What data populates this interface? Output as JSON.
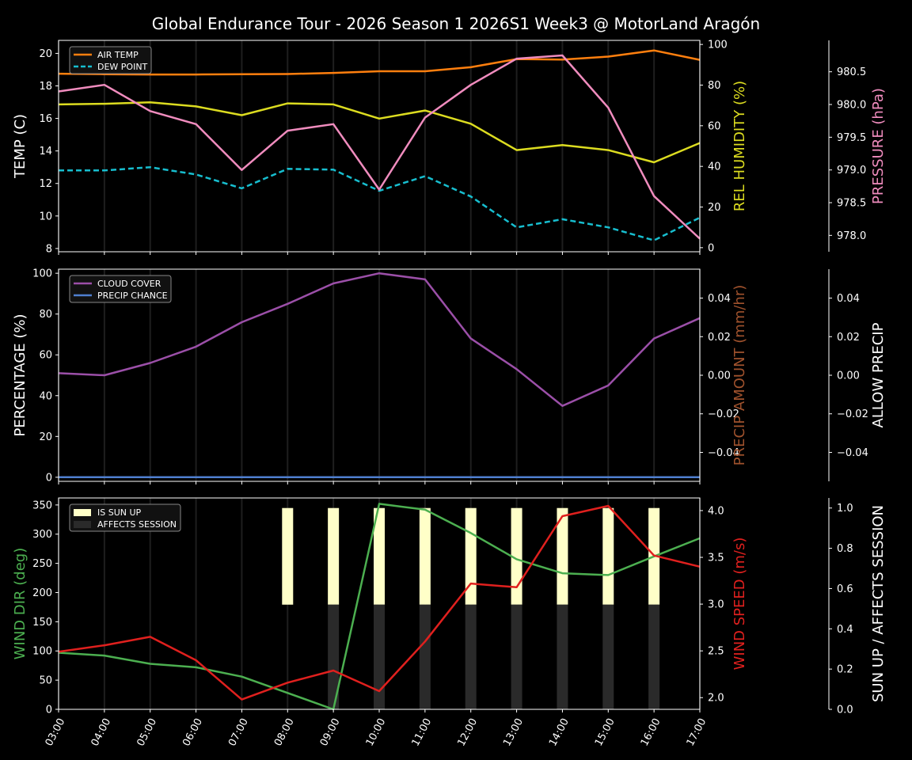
{
  "title": "Global Endurance Tour - 2026 Season 1 2026S1 Week3 @ MotorLand Aragón",
  "colors": {
    "background": "#000000",
    "axis": "#ffffff",
    "air_temp": "#ff7f0e",
    "dew_point": "#17becf",
    "humidity": "#dcdc20",
    "pressure": "#f08cbe",
    "cloud_cover": "#9b4fa8",
    "precip_chance": "#4f7fd0",
    "precip_amount_label": "#a0522d",
    "wind_dir": "#4caf50",
    "wind_speed": "#e0201e",
    "sun_up": "#ffffc8",
    "affects_session": "#2a2a2a"
  },
  "chart_data": [
    {
      "type": "line",
      "panel": "temperature",
      "x": [
        "03:00",
        "04:00",
        "05:00",
        "06:00",
        "07:00",
        "08:00",
        "09:00",
        "10:00",
        "11:00",
        "12:00",
        "13:00",
        "14:00",
        "15:00",
        "16:00",
        "17:00"
      ],
      "ylabel": "TEMP (C)",
      "ylim": [
        7.8,
        20.8
      ],
      "yticks": [
        "8",
        "10",
        "12",
        "14",
        "16",
        "18",
        "20"
      ],
      "y2label": "REL HUMIDITY (%)",
      "y2lim": [
        -2,
        102
      ],
      "y2ticks": [
        "0",
        "20",
        "40",
        "60",
        "80",
        "100"
      ],
      "y3label": "PRESSURE (hPa)",
      "y3lim": [
        977.75,
        980.98
      ],
      "y3ticks": [
        "978.0",
        "978.5",
        "979.0",
        "979.5",
        "980.0",
        "980.5"
      ],
      "legend": [
        "AIR TEMP",
        "DEW POINT"
      ],
      "series": [
        {
          "name": "AIR TEMP",
          "axis": "left",
          "values": [
            18.75,
            18.72,
            18.7,
            18.7,
            18.72,
            18.73,
            18.8,
            18.9,
            18.9,
            19.15,
            19.65,
            19.62,
            19.8,
            20.18,
            19.6
          ]
        },
        {
          "name": "DEW POINT",
          "axis": "left",
          "values": [
            12.8,
            12.8,
            13.0,
            12.55,
            11.7,
            12.9,
            12.85,
            11.55,
            12.45,
            11.2,
            9.3,
            9.8,
            9.3,
            8.5,
            9.9
          ]
        },
        {
          "axis": "right",
          "values": [
            70.5,
            70.8,
            71.5,
            69.5,
            65.2,
            71.0,
            70.5,
            63.5,
            67.5,
            61.0,
            48.0,
            50.5,
            48.0,
            42.0,
            51.5
          ]
        },
        {
          "axis": "far-right",
          "values": [
            980.2,
            980.3,
            979.9,
            979.7,
            979.0,
            979.6,
            979.7,
            978.7,
            979.8,
            980.3,
            980.7,
            980.75,
            979.95,
            978.6,
            977.95
          ]
        }
      ]
    },
    {
      "type": "line",
      "panel": "clouds",
      "x": [
        "03:00",
        "04:00",
        "05:00",
        "06:00",
        "07:00",
        "08:00",
        "09:00",
        "10:00",
        "11:00",
        "12:00",
        "13:00",
        "14:00",
        "15:00",
        "16:00",
        "17:00"
      ],
      "ylabel": "PERCENTAGE (%)",
      "ylim": [
        -2,
        102
      ],
      "yticks": [
        "0",
        "20",
        "40",
        "60",
        "80",
        "100"
      ],
      "y2label": "PRECIP AMOUNT (mm/hr)",
      "y2lim": [
        -0.055,
        0.055
      ],
      "y2ticks": [
        "−0.04",
        "−0.02",
        "0.00",
        "0.02",
        "0.04"
      ],
      "y3label": "ALLOW PRECIP",
      "y3lim": [
        -0.055,
        0.055
      ],
      "y3ticks": [
        "−0.04",
        "−0.02",
        "0.00",
        "0.02",
        "0.04"
      ],
      "legend": [
        "CLOUD COVER",
        "PRECIP CHANCE"
      ],
      "series": [
        {
          "name": "CLOUD COVER",
          "axis": "left",
          "values": [
            51,
            50,
            56,
            64,
            76,
            85,
            95,
            100,
            97,
            68,
            53,
            35,
            45,
            68,
            78
          ]
        },
        {
          "name": "PRECIP CHANCE",
          "axis": "left",
          "values": [
            0,
            0,
            0,
            0,
            0,
            0,
            0,
            0,
            0,
            0,
            0,
            0,
            0,
            0,
            0
          ]
        }
      ]
    },
    {
      "type": "line",
      "panel": "wind",
      "x": [
        "03:00",
        "04:00",
        "05:00",
        "06:00",
        "07:00",
        "08:00",
        "09:00",
        "10:00",
        "11:00",
        "12:00",
        "13:00",
        "14:00",
        "15:00",
        "16:00",
        "17:00"
      ],
      "ylabel": "WIND DIR (deg)",
      "ylim": [
        0,
        362
      ],
      "yticks": [
        "0",
        "50",
        "100",
        "150",
        "200",
        "250",
        "300",
        "350"
      ],
      "y2label": "WIND SPEED (m/s)",
      "y2lim": [
        1.875,
        4.135
      ],
      "y2ticks": [
        "2.0",
        "2.5",
        "3.0",
        "3.5",
        "4.0"
      ],
      "y3label": "SUN UP / AFFECTS SESSION",
      "y3lim": [
        0,
        1.05
      ],
      "y3ticks": [
        "0.0",
        "0.2",
        "0.4",
        "0.6",
        "0.8",
        "1.0"
      ],
      "legend": [
        "IS SUN UP",
        "AFFECTS SESSION"
      ],
      "series": [
        {
          "axis": "left",
          "values": [
            97,
            92,
            78,
            72,
            56,
            28,
            0,
            352,
            342,
            302,
            257,
            233,
            230,
            262,
            293
          ]
        },
        {
          "axis": "right",
          "values": [
            2.49,
            2.56,
            2.65,
            2.4,
            1.98,
            2.16,
            2.29,
            2.07,
            2.6,
            3.22,
            3.18,
            3.94,
            4.05,
            3.52,
            3.4
          ]
        },
        {
          "name": "IS SUN UP",
          "axis": "far-right",
          "type": "bar",
          "start": [
            0,
            0,
            0,
            0,
            0,
            0.52,
            0.52,
            0.52,
            0.52,
            0.52,
            0.52,
            0.52,
            0.52,
            0.52,
            0
          ],
          "values": [
            0,
            0,
            0,
            0,
            0,
            1.0,
            1.0,
            1.0,
            1.0,
            1.0,
            1.0,
            1.0,
            1.0,
            1.0,
            0
          ]
        },
        {
          "name": "AFFECTS SESSION",
          "axis": "far-right",
          "type": "bar",
          "values": [
            0,
            0,
            0,
            0,
            0,
            0,
            0.52,
            0.52,
            0.52,
            0.52,
            0.52,
            0.52,
            0.52,
            0.52,
            0
          ]
        }
      ]
    }
  ]
}
